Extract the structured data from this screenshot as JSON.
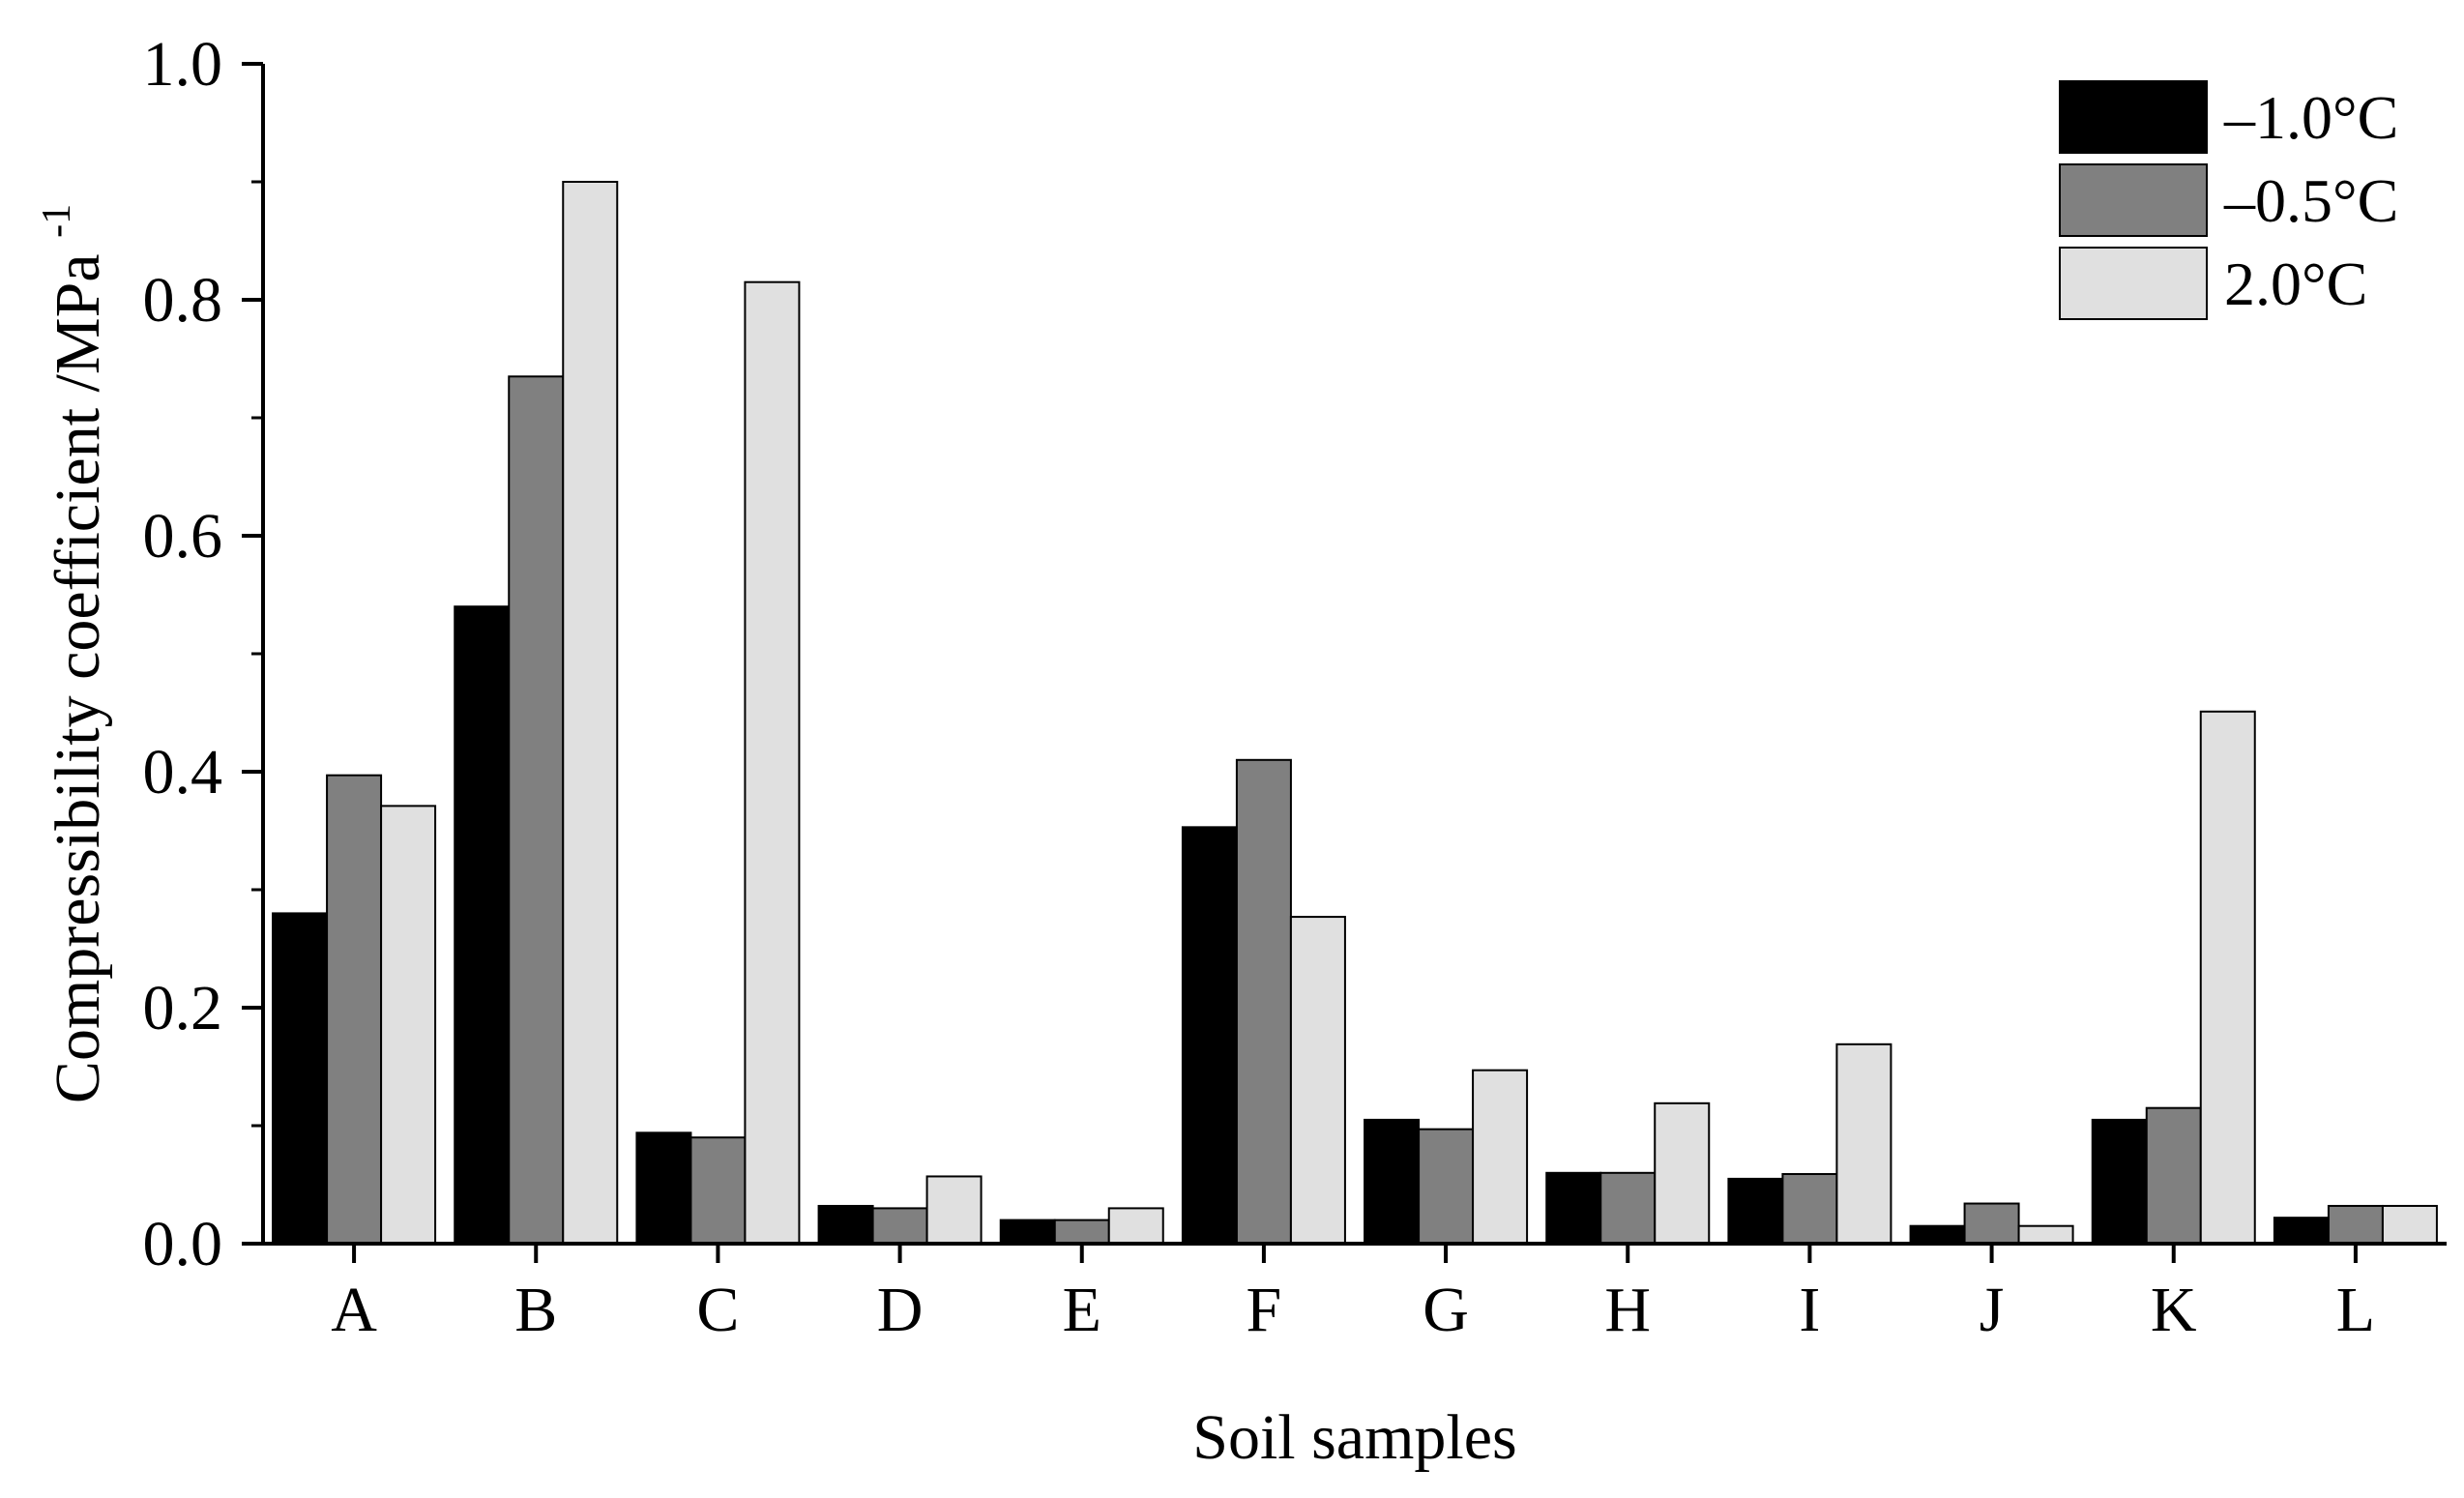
{
  "chart_data": {
    "type": "bar",
    "title": "",
    "xlabel": "Soil samples",
    "ylabel": "Compressibility  coefficient /MPa",
    "ylabel_superscript": "-1",
    "ylim": [
      0,
      1.0
    ],
    "yticks": [
      0.0,
      0.2,
      0.4,
      0.6,
      0.8,
      1.0
    ],
    "ytick_labels": [
      "0.0",
      "0.2",
      "0.4",
      "0.6",
      "0.8",
      "1.0"
    ],
    "categories": [
      "A",
      "B",
      "C",
      "D",
      "E",
      "F",
      "G",
      "H",
      "I",
      "J",
      "K",
      "L"
    ],
    "series": [
      {
        "name": "–1.0°C",
        "color": "#000000",
        "values": [
          0.28,
          0.54,
          0.094,
          0.032,
          0.02,
          0.353,
          0.105,
          0.06,
          0.055,
          0.015,
          0.105,
          0.022
        ]
      },
      {
        "name": "–0.5°C",
        "color": "#808080",
        "values": [
          0.397,
          0.735,
          0.09,
          0.03,
          0.02,
          0.41,
          0.097,
          0.06,
          0.059,
          0.034,
          0.115,
          0.032
        ]
      },
      {
        "name": "2.0°C",
        "color": "#e0e0e0",
        "values": [
          0.371,
          0.9,
          0.815,
          0.057,
          0.03,
          0.277,
          0.147,
          0.119,
          0.169,
          0.015,
          0.451,
          0.032
        ]
      }
    ],
    "grid": false,
    "legend_position": "top-right"
  }
}
